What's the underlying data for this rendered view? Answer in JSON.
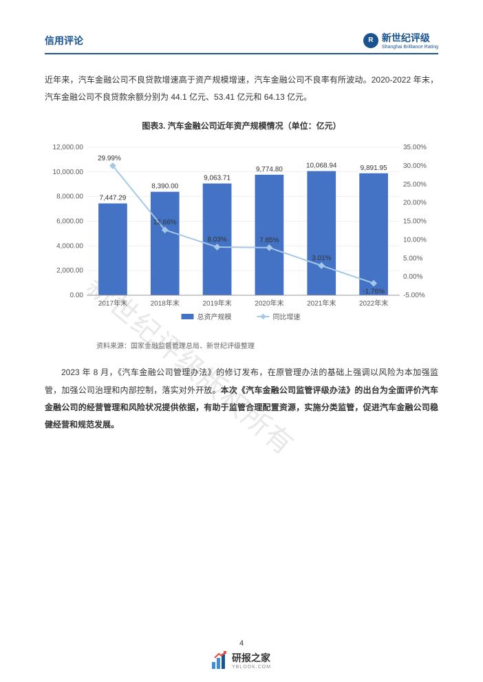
{
  "header": {
    "title": "信用评论",
    "brand_zh": "新世纪评级",
    "brand_en": "Shanghai Brilliance Rating"
  },
  "para1": "近年来，汽车金融公司不良贷款增速高于资产规模增速，汽车金融公司不良率有所波动。2020-2022 年末，汽车金融公司不良贷款余额分别为 44.1 亿元、53.41 亿元和 64.13 亿元。",
  "chart": {
    "title": "图表3.  汽车金融公司近年资产规模情况（单位：亿元）",
    "source": "资料来源：国家金融监督管理总局、新世纪评级整理",
    "categories": [
      "2017年末",
      "2018年末",
      "2019年末",
      "2020年末",
      "2021年末",
      "2022年末"
    ],
    "bar_values": [
      7447.29,
      8390.0,
      9063.71,
      9774.8,
      10068.94,
      9891.95
    ],
    "bar_labels": [
      "7,447.29",
      "8,390.00",
      "9,063.71",
      "9,774.80",
      "10,068.94",
      "9,891.95"
    ],
    "line_values": [
      29.99,
      12.66,
      8.03,
      7.85,
      3.01,
      -1.76
    ],
    "line_labels": [
      "29.99%",
      "12.66%",
      "8.03%",
      "7.85%",
      "3.01%",
      "-1.76%"
    ],
    "y1_max": 12000,
    "y1_step": 2000,
    "y1_ticks": [
      "0.00",
      "2,000.00",
      "4,000.00",
      "6,000.00",
      "8,000.00",
      "10,000.00",
      "12,000.00"
    ],
    "y2_min": -5,
    "y2_max": 35,
    "y2_step": 5,
    "y2_ticks": [
      "-5.00%",
      "0.00%",
      "5.00%",
      "10.00%",
      "15.00%",
      "20.00%",
      "25.00%",
      "30.00%",
      "35.00%"
    ],
    "legend1": "总资产规模",
    "legend2": "同比增速",
    "bar_color": "#4472c4",
    "line_color": "#a5c8e8",
    "grid_color": "#e0e0e0",
    "background": "#ffffff"
  },
  "para2_plain": "2023 年 8 月，《汽车金融公司管理办法》的修订发布，在原管理办法的基础上强调以风险为本加强监管，加强公司治理和内部控制，落实对外开放。",
  "para2_bold": "本次《汽车金融公司监管评级办法》的出台为全面评价汽车金融公司的经营管理和风险状况提供依据，有助于监管合理配置资源，实施分类监管，促进汽车金融公司稳健经营和规范发展。",
  "page_number": "4",
  "watermark": "新世纪评级版权所有",
  "footer_logo": {
    "zh": "研报之家",
    "en": "YBLOOK.COM"
  }
}
